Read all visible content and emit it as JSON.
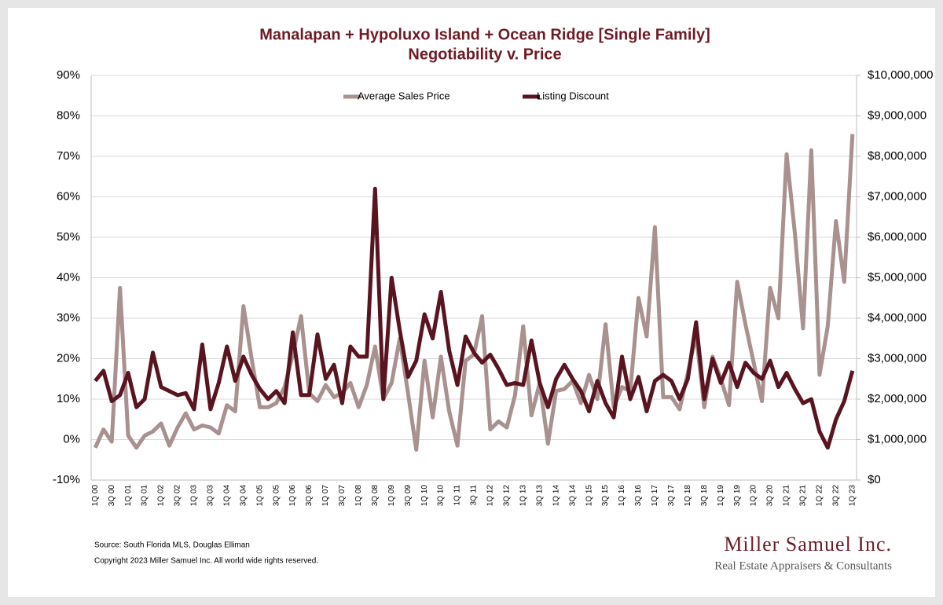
{
  "chart_data": {
    "type": "line",
    "title": "Manalapan + Hypoluxo Island + Ocean Ridge [Single Family]",
    "subtitle": "Negotiability v. Price",
    "categories": [
      "1Q 00",
      null,
      "3Q 00",
      null,
      "1Q 01",
      null,
      "3Q 01",
      null,
      "1Q 02",
      null,
      "3Q 02",
      null,
      "1Q 03",
      null,
      "3Q 03",
      null,
      "1Q 04",
      null,
      "3Q 04",
      null,
      "1Q 05",
      null,
      "3Q 05",
      null,
      "1Q 06",
      null,
      "3Q 06",
      null,
      "1Q 07",
      null,
      "3Q 07",
      null,
      "1Q 08",
      null,
      "3Q 08",
      null,
      "1Q 09",
      null,
      "3Q 09",
      null,
      "1Q 10",
      null,
      "3Q 10",
      null,
      "1Q 11",
      null,
      "3Q 11",
      null,
      "1Q 12",
      null,
      "3Q 12",
      null,
      "1Q 13",
      null,
      "3Q 13",
      null,
      "1Q 14",
      null,
      "3Q 14",
      null,
      "1Q 15",
      null,
      "3Q 15",
      null,
      "1Q 16",
      null,
      "3Q 16",
      null,
      "1Q 17",
      null,
      "3Q 17",
      null,
      "1Q 18",
      null,
      "3Q 18",
      null,
      "1Q 19",
      null,
      "3Q 19",
      null,
      "1Q 20",
      null,
      "3Q 20",
      null,
      "1Q 21",
      null,
      "3Q 21",
      null,
      "1Q 22",
      null,
      "3Q 22",
      null,
      "1Q 23"
    ],
    "series": [
      {
        "name": "Average Sales Price",
        "color": "#a8918f",
        "axis": "y2",
        "values": [
          800000,
          1250000,
          950000,
          4750000,
          1100000,
          800000,
          1100000,
          1200000,
          1400000,
          850000,
          1300000,
          1650000,
          1250000,
          1350000,
          1300000,
          1150000,
          1850000,
          1700000,
          4300000,
          3000000,
          1800000,
          1800000,
          1900000,
          2300000,
          3100000,
          4050000,
          2150000,
          1950000,
          2350000,
          2050000,
          2150000,
          2400000,
          1800000,
          2350000,
          3300000,
          2000000,
          2400000,
          3500000,
          2150000,
          750000,
          2950000,
          1550000,
          3050000,
          1700000,
          850000,
          2950000,
          3100000,
          4050000,
          1250000,
          1450000,
          1300000,
          2100000,
          3800000,
          1600000,
          2400000,
          900000,
          2200000,
          2250000,
          2450000,
          1900000,
          2600000,
          2000000,
          3850000,
          1800000,
          2300000,
          2200000,
          4500000,
          3550000,
          6250000,
          2050000,
          2050000,
          1750000,
          2650000,
          3600000,
          1800000,
          3050000,
          2500000,
          1850000,
          4900000,
          3850000,
          2900000,
          1950000,
          4750000,
          4000000,
          8050000,
          6100000,
          3750000,
          8150000,
          2600000,
          3800000,
          6400000,
          4900000,
          8550000
        ]
      },
      {
        "name": "Listing Discount",
        "color": "#5a1420",
        "values": [
          14.5,
          17,
          9.5,
          11,
          16.5,
          8,
          10,
          21.5,
          13,
          12,
          11,
          11.5,
          7.5,
          23.5,
          7.5,
          14,
          23,
          14.5,
          20.5,
          16,
          12.5,
          10,
          12,
          9,
          26.5,
          11,
          11,
          26,
          15,
          18.5,
          9,
          23,
          20.5,
          20.5,
          62,
          10,
          40,
          27,
          15.5,
          19.5,
          31,
          25,
          36.5,
          22,
          13.5,
          25.5,
          21.5,
          19,
          21,
          17.5,
          13.5,
          14,
          13.5,
          24.5,
          14,
          8,
          15,
          18.5,
          15,
          12,
          7,
          14.5,
          9,
          5.5,
          20.5,
          10,
          15.5,
          7,
          14.5,
          16,
          14.5,
          10,
          15,
          29,
          10,
          20,
          14,
          19,
          13,
          19,
          16.5,
          15,
          19.5,
          13,
          16.5,
          12.5,
          9,
          10,
          2,
          -2,
          5,
          9.5,
          17
        ]
      }
    ],
    "ylim": [
      -10,
      90
    ],
    "yticks": [
      {
        "value": -10,
        "label": "-10%"
      },
      {
        "value": 0,
        "label": "0%"
      },
      {
        "value": 10,
        "label": "10%"
      },
      {
        "value": 20,
        "label": "20%"
      },
      {
        "value": 30,
        "label": "30%"
      },
      {
        "value": 40,
        "label": "40%"
      },
      {
        "value": 50,
        "label": "50%"
      },
      {
        "value": 60,
        "label": "60%"
      },
      {
        "value": 70,
        "label": "70%"
      },
      {
        "value": 80,
        "label": "80%"
      },
      {
        "value": 90,
        "label": "90%"
      }
    ],
    "y2lim": [
      0,
      10000000
    ],
    "y2ticks": [
      {
        "value": 0,
        "label": "$0"
      },
      {
        "value": 1000000,
        "label": "$1,000,000"
      },
      {
        "value": 2000000,
        "label": "$2,000,000"
      },
      {
        "value": 3000000,
        "label": "$3,000,000"
      },
      {
        "value": 4000000,
        "label": "$4,000,000"
      },
      {
        "value": 5000000,
        "label": "$5,000,000"
      },
      {
        "value": 6000000,
        "label": "$6,000,000"
      },
      {
        "value": 7000000,
        "label": "$7,000,000"
      },
      {
        "value": 8000000,
        "label": "$8,000,000"
      },
      {
        "value": 9000000,
        "label": "$9,000,000"
      },
      {
        "value": 10000000,
        "label": "$10,000,000"
      }
    ],
    "grid": true,
    "legend": "top",
    "source": "Source: South Florida MLS, Douglas Elliman",
    "copyright": "Copyright 2023 Miller Samuel Inc.  All world wide rights reserved.",
    "logo": "Miller Samuel Inc.",
    "logo_tagline": "Real Estate Appraisers & Consultants"
  }
}
